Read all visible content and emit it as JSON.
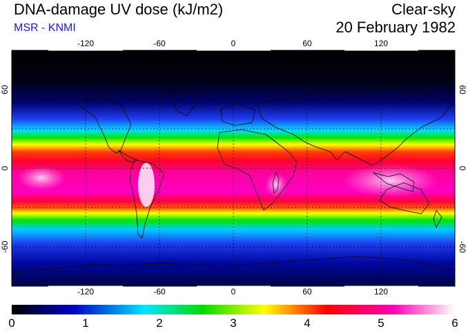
{
  "header": {
    "title": "DNA-damage UV dose (kJ/m2)",
    "source": "MSR - KNMI",
    "mode": "Clear-sky",
    "date": "20 February 1982"
  },
  "map": {
    "lon_ticks": [
      "-120",
      "-60",
      "0",
      "60",
      "120"
    ],
    "lat_ticks": [
      "60",
      "0",
      "-60"
    ],
    "lon_range": [
      -180,
      180
    ],
    "lat_range": [
      -90,
      90
    ],
    "projection": "equirectangular",
    "graticule": "dashed"
  },
  "colorbar": {
    "ticks": [
      "0",
      "1",
      "2",
      "3",
      "4",
      "5",
      "6"
    ],
    "range": [
      0,
      6
    ],
    "colors": [
      "#000000",
      "#0000c8",
      "#00e6ff",
      "#00dc00",
      "#ffff00",
      "#ff0000",
      "#ff00b4",
      "#ffffff"
    ]
  }
}
